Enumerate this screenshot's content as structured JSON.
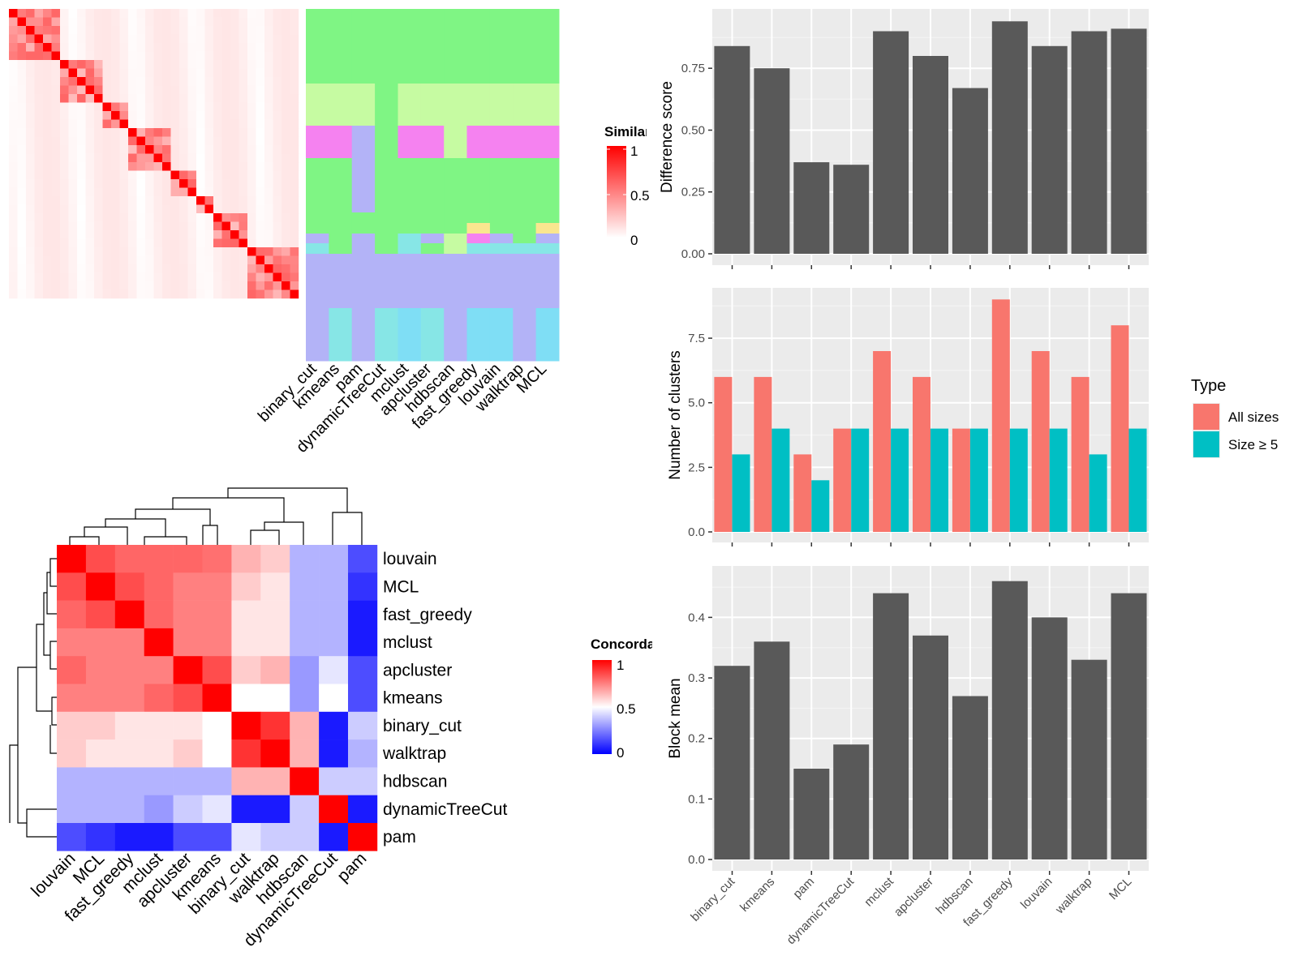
{
  "colors": {
    "heat_high": "#FF0000",
    "heat_low": "#FFFFFF",
    "conc_low": "#0000FF",
    "bar_dark": "#595959",
    "panel_bg": "#EBEBEB",
    "all_sizes": "#F8766D",
    "size_ge5": "#00BFC4",
    "cl_green": "#7FF584",
    "cl_lightgreen": "#C6FBA2",
    "cl_magenta": "#F582F0",
    "cl_lavender": "#B3B3F7",
    "cl_cyan": "#7FDEF5",
    "cl_teal": "#87E6E6",
    "cl_yellow": "#FAE68F"
  },
  "methods_top": [
    "binary_cut",
    "kmeans",
    "pam",
    "dynamicTreeCut",
    "mclust",
    "apcluster",
    "hdbscan",
    "fast_greedy",
    "louvain",
    "walktrap",
    "MCL"
  ],
  "similarity_heatmap": {
    "legend_title": "Similarity",
    "legend_ticks": [
      "1",
      "0.5",
      "0"
    ]
  },
  "concordance_heatmap": {
    "legend_title": "Concordance",
    "legend_ticks": [
      "1",
      "0.5",
      "0"
    ],
    "row_labels": [
      "louvain",
      "MCL",
      "fast_greedy",
      "mclust",
      "apcluster",
      "kmeans",
      "binary_cut",
      "walktrap",
      "hdbscan",
      "dynamicTreeCut",
      "pam"
    ],
    "col_labels": [
      "louvain",
      "MCL",
      "fast_greedy",
      "mclust",
      "apcluster",
      "kmeans",
      "binary_cut",
      "walktrap",
      "hdbscan",
      "dynamicTreeCut",
      "pam"
    ],
    "values": [
      [
        1.0,
        0.85,
        0.8,
        0.8,
        0.8,
        0.78,
        0.65,
        0.6,
        0.35,
        0.35,
        0.15
      ],
      [
        0.85,
        1.0,
        0.85,
        0.8,
        0.75,
        0.75,
        0.6,
        0.55,
        0.35,
        0.35,
        0.1
      ],
      [
        0.8,
        0.85,
        1.0,
        0.8,
        0.75,
        0.75,
        0.55,
        0.55,
        0.35,
        0.35,
        0.05
      ],
      [
        0.75,
        0.75,
        0.75,
        1.0,
        0.75,
        0.75,
        0.55,
        0.55,
        0.35,
        0.35,
        0.05
      ],
      [
        0.8,
        0.75,
        0.75,
        0.75,
        1.0,
        0.85,
        0.6,
        0.65,
        0.3,
        0.45,
        0.15
      ],
      [
        0.75,
        0.75,
        0.75,
        0.8,
        0.85,
        1.0,
        0.5,
        0.5,
        0.3,
        0.5,
        0.15
      ],
      [
        0.6,
        0.6,
        0.55,
        0.55,
        0.55,
        0.5,
        1.0,
        0.9,
        0.65,
        0.05,
        0.4
      ],
      [
        0.6,
        0.55,
        0.55,
        0.55,
        0.6,
        0.5,
        0.9,
        1.0,
        0.65,
        0.05,
        0.35
      ],
      [
        0.35,
        0.35,
        0.35,
        0.35,
        0.35,
        0.35,
        0.65,
        0.65,
        1.0,
        0.4,
        0.4
      ],
      [
        0.35,
        0.35,
        0.35,
        0.3,
        0.4,
        0.45,
        0.05,
        0.05,
        0.4,
        1.0,
        0.05
      ],
      [
        0.15,
        0.1,
        0.05,
        0.05,
        0.15,
        0.15,
        0.45,
        0.4,
        0.4,
        0.05,
        1.0
      ]
    ]
  },
  "chart_data": [
    {
      "type": "bar",
      "categories": [
        "binary_cut",
        "kmeans",
        "pam",
        "dynamicTreeCut",
        "mclust",
        "apcluster",
        "hdbscan",
        "fast_greedy",
        "louvain",
        "walktrap",
        "MCL"
      ],
      "values": [
        0.84,
        0.75,
        0.37,
        0.36,
        0.9,
        0.8,
        0.67,
        0.94,
        0.84,
        0.9,
        0.91
      ],
      "ylabel": "Difference score",
      "yticks": [
        "0.00",
        "0.25",
        "0.50",
        "0.75"
      ],
      "ylim": [
        0,
        0.99
      ]
    },
    {
      "type": "bar",
      "categories": [
        "binary_cut",
        "kmeans",
        "pam",
        "dynamicTreeCut",
        "mclust",
        "apcluster",
        "hdbscan",
        "fast_greedy",
        "louvain",
        "walktrap",
        "MCL"
      ],
      "series": [
        {
          "name": "All sizes",
          "values": [
            6,
            6,
            3,
            4,
            7,
            6,
            4,
            9,
            7,
            6,
            8
          ]
        },
        {
          "name": "Size ≥ 5",
          "values": [
            3,
            4,
            2,
            4,
            4,
            4,
            4,
            4,
            4,
            3,
            4
          ]
        }
      ],
      "ylabel": "Number of clusters",
      "yticks": [
        "0.0",
        "2.5",
        "5.0",
        "7.5"
      ],
      "ylim": [
        0,
        9.45
      ],
      "legend_title": "Type",
      "legend_position": "right"
    },
    {
      "type": "bar",
      "categories": [
        "binary_cut",
        "kmeans",
        "pam",
        "dynamicTreeCut",
        "mclust",
        "apcluster",
        "hdbscan",
        "fast_greedy",
        "louvain",
        "walktrap",
        "MCL"
      ],
      "values": [
        0.32,
        0.36,
        0.15,
        0.19,
        0.44,
        0.37,
        0.27,
        0.46,
        0.4,
        0.33,
        0.44
      ],
      "ylabel": "Block mean",
      "yticks": [
        "0.0",
        "0.1",
        "0.2",
        "0.3",
        "0.4"
      ],
      "ylim": [
        0,
        0.485
      ]
    }
  ]
}
